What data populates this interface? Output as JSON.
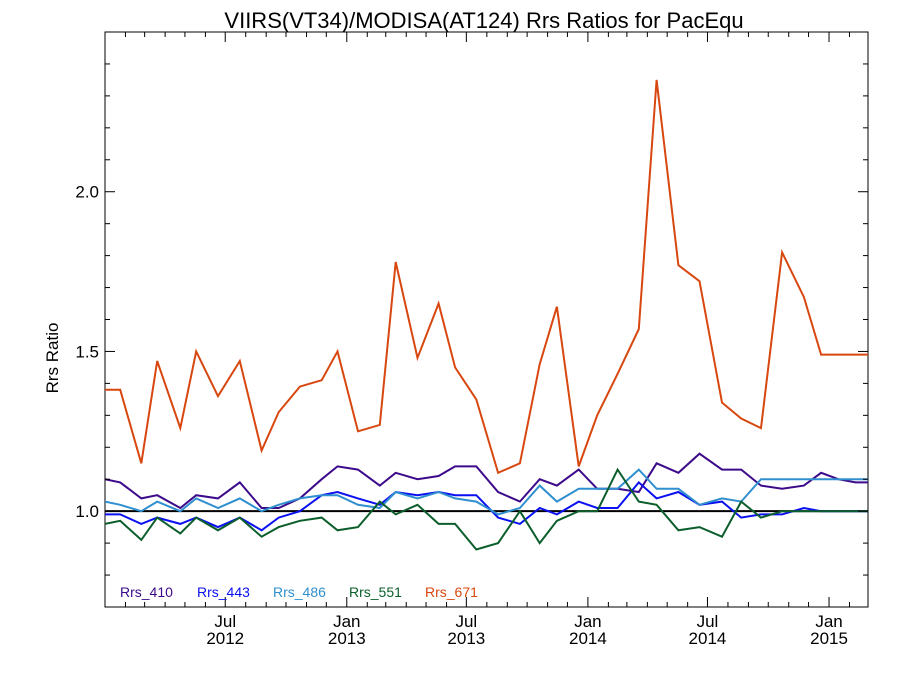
{
  "chart_data": {
    "type": "line",
    "title": "VIIRS(VT34)/MODISA(AT124)  Rrs Ratios for PacEqu",
    "xlabel": "",
    "ylabel": "Rrs Ratio",
    "xlim": [
      "2012-01-01",
      "2015-03-01"
    ],
    "ylim": [
      0.7,
      2.5
    ],
    "yticks": [
      1.0,
      1.5,
      2.0
    ],
    "ytick_labels": [
      "1.0",
      "1.5",
      "2.0"
    ],
    "xticks": [
      {
        "date": "2012-07-01",
        "label_top": "Jul",
        "label_bottom": "2012"
      },
      {
        "date": "2013-01-01",
        "label_top": "Jan",
        "label_bottom": "2013"
      },
      {
        "date": "2013-07-01",
        "label_top": "Jul",
        "label_bottom": "2013"
      },
      {
        "date": "2014-01-01",
        "label_top": "Jan",
        "label_bottom": "2014"
      },
      {
        "date": "2014-07-01",
        "label_top": "Jul",
        "label_bottom": "2014"
      },
      {
        "date": "2015-01-01",
        "label_top": "Jan",
        "label_bottom": "2015"
      }
    ],
    "reference_line": {
      "y": 1.0,
      "color": "#000000"
    },
    "grid": false,
    "legend_position": "bottom-left",
    "x": [
      "2012-01-01",
      "2012-01-24",
      "2012-02-25",
      "2012-03-20",
      "2012-04-24",
      "2012-05-18",
      "2012-06-20",
      "2012-07-23",
      "2012-08-25",
      "2012-09-20",
      "2012-10-22",
      "2012-11-24",
      "2012-12-18",
      "2013-01-18",
      "2013-02-20",
      "2013-03-16",
      "2013-04-18",
      "2013-05-20",
      "2013-06-14",
      "2013-07-16",
      "2013-08-18",
      "2013-09-20",
      "2013-10-20",
      "2013-11-15",
      "2013-12-18",
      "2014-01-15",
      "2014-02-15",
      "2014-03-19",
      "2014-04-15",
      "2014-05-18",
      "2014-06-19",
      "2014-07-23",
      "2014-08-21",
      "2014-09-20",
      "2014-10-22",
      "2014-11-24",
      "2014-12-20",
      "2015-01-15",
      "2015-02-10",
      "2015-03-01"
    ],
    "series": [
      {
        "name": "Rrs_410",
        "color": "#3c0a8a",
        "values": [
          1.1,
          1.09,
          1.04,
          1.05,
          1.01,
          1.05,
          1.04,
          1.09,
          1.01,
          1.01,
          1.04,
          1.1,
          1.14,
          1.13,
          1.08,
          1.12,
          1.1,
          1.11,
          1.14,
          1.14,
          1.06,
          1.03,
          1.1,
          1.08,
          1.13,
          1.07,
          1.07,
          1.06,
          1.15,
          1.12,
          1.18,
          1.13,
          1.13,
          1.08,
          1.07,
          1.08,
          1.12,
          1.1,
          1.09,
          1.09
        ]
      },
      {
        "name": "Rrs_443",
        "color": "#0a10f0",
        "values": [
          0.99,
          0.99,
          0.96,
          0.98,
          0.96,
          0.98,
          0.95,
          0.98,
          0.94,
          0.98,
          1.0,
          1.05,
          1.06,
          1.04,
          1.02,
          1.06,
          1.05,
          1.06,
          1.05,
          1.05,
          0.98,
          0.96,
          1.01,
          0.99,
          1.03,
          1.01,
          1.01,
          1.09,
          1.04,
          1.06,
          1.02,
          1.03,
          0.98,
          0.99,
          0.99,
          1.01,
          1.0,
          1.0,
          1.0,
          1.0
        ]
      },
      {
        "name": "Rrs_486",
        "color": "#2f8fcf",
        "values": [
          1.03,
          1.02,
          1.0,
          1.03,
          1.0,
          1.04,
          1.01,
          1.04,
          1.0,
          1.02,
          1.04,
          1.05,
          1.05,
          1.02,
          1.01,
          1.06,
          1.04,
          1.06,
          1.04,
          1.03,
          0.99,
          1.01,
          1.08,
          1.03,
          1.07,
          1.07,
          1.07,
          1.13,
          1.07,
          1.07,
          1.02,
          1.04,
          1.03,
          1.1,
          1.1,
          1.1,
          1.1,
          1.1,
          1.1,
          1.1
        ]
      },
      {
        "name": "Rrs_551",
        "color": "#0b5e2b",
        "values": [
          0.96,
          0.97,
          0.91,
          0.98,
          0.93,
          0.98,
          0.94,
          0.98,
          0.92,
          0.95,
          0.97,
          0.98,
          0.94,
          0.95,
          1.03,
          0.99,
          1.02,
          0.96,
          0.96,
          0.88,
          0.9,
          1.0,
          0.9,
          0.97,
          1.0,
          1.0,
          1.13,
          1.03,
          1.02,
          0.94,
          0.95,
          0.92,
          1.03,
          0.98,
          1.0,
          1.0,
          1.0,
          1.0,
          1.0,
          1.0
        ]
      },
      {
        "name": "Rrs_671",
        "color": "#d8470f",
        "values": [
          1.38,
          1.38,
          1.15,
          1.47,
          1.26,
          1.5,
          1.36,
          1.47,
          1.19,
          1.31,
          1.39,
          1.41,
          1.5,
          1.25,
          1.27,
          1.78,
          1.48,
          1.65,
          1.45,
          1.35,
          1.12,
          1.15,
          1.46,
          1.64,
          1.14,
          1.3,
          1.43,
          1.57,
          2.35,
          1.77,
          1.72,
          1.34,
          1.29,
          1.26,
          1.81,
          1.67,
          1.49,
          1.49,
          1.49,
          1.49
        ]
      }
    ]
  }
}
